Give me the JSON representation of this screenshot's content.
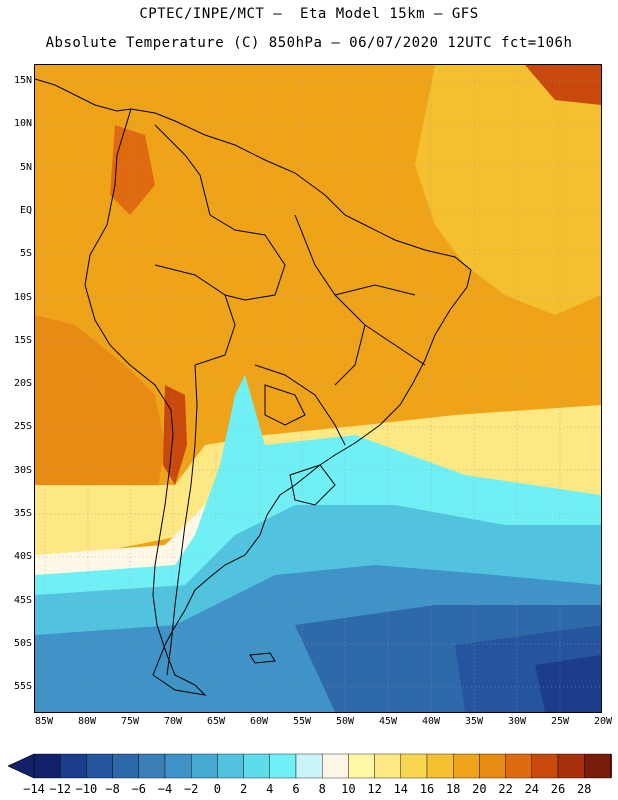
{
  "header": {
    "title_line1": "CPTEC/INPE/MCT —  Eta Model 15km — GFS",
    "title_line2": "Absolute Temperature (C) 850hPa — 06/07/2020 12UTC fct=106h"
  },
  "axes": {
    "lat_labels": [
      "15N",
      "10N",
      "5N",
      "EQ",
      "5S",
      "10S",
      "15S",
      "20S",
      "25S",
      "30S",
      "35S",
      "40S",
      "45S",
      "50S",
      "55S"
    ],
    "lon_labels": [
      "85W",
      "80W",
      "75W",
      "70W",
      "65W",
      "60W",
      "55W",
      "50W",
      "45W",
      "40W",
      "35W",
      "30W",
      "25W",
      "20W"
    ]
  },
  "colorbar": {
    "labels": [
      "−14",
      "−12",
      "−10",
      "−8",
      "−6",
      "−4",
      "−2",
      "0",
      "2",
      "4",
      "6",
      "8",
      "10",
      "12",
      "14",
      "16",
      "18",
      "20",
      "22",
      "24",
      "26",
      "28"
    ],
    "colors": [
      "#12206a",
      "#1c3d8c",
      "#24559e",
      "#2e6aaa",
      "#3a7fb5",
      "#3f93c6",
      "#45a9d2",
      "#52c3de",
      "#5fdce9",
      "#70f0f5",
      "#c9f4f8",
      "#fff8e6",
      "#fff6a6",
      "#fde883",
      "#f8d650",
      "#f4c02f",
      "#efa319",
      "#e88b13",
      "#e06a0f",
      "#c9480c",
      "#a8300c",
      "#7a1c0c"
    ],
    "under_color": "#12206a",
    "over_color": "#7a1c0c"
  }
}
